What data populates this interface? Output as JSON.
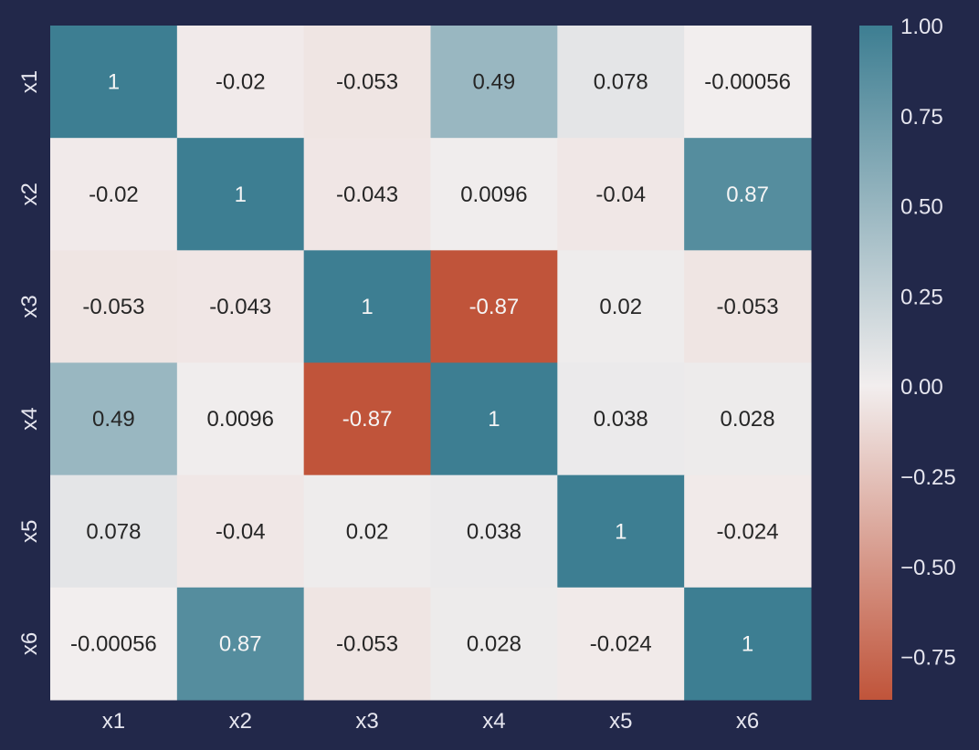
{
  "chart_data": {
    "type": "heatmap",
    "x_categories": [
      "x1",
      "x2",
      "x3",
      "x4",
      "x5",
      "x6"
    ],
    "y_categories": [
      "x1",
      "x2",
      "x3",
      "x4",
      "x5",
      "x6"
    ],
    "values": [
      [
        1,
        -0.02,
        -0.053,
        0.49,
        0.078,
        -0.00056
      ],
      [
        -0.02,
        1,
        -0.043,
        0.0096,
        -0.04,
        0.87
      ],
      [
        -0.053,
        -0.043,
        1,
        -0.87,
        0.02,
        -0.053
      ],
      [
        0.49,
        0.0096,
        -0.87,
        1,
        0.038,
        0.028
      ],
      [
        0.078,
        -0.04,
        0.02,
        0.038,
        1,
        -0.024
      ],
      [
        -0.00056,
        0.87,
        -0.053,
        0.028,
        -0.024,
        1
      ]
    ],
    "cell_labels": [
      [
        "1",
        "-0.02",
        "-0.053",
        "0.49",
        "0.078",
        "-0.00056"
      ],
      [
        "-0.02",
        "1",
        "-0.043",
        "0.0096",
        "-0.04",
        "0.87"
      ],
      [
        "-0.053",
        "-0.043",
        "1",
        "-0.87",
        "0.02",
        "-0.053"
      ],
      [
        "0.49",
        "0.0096",
        "-0.87",
        "1",
        "0.038",
        "0.028"
      ],
      [
        "0.078",
        "-0.04",
        "0.02",
        "0.038",
        "1",
        "-0.024"
      ],
      [
        "-0.00056",
        "0.87",
        "-0.053",
        "0.028",
        "-0.024",
        "1"
      ]
    ],
    "colorbar": {
      "range": [
        -0.87,
        1
      ],
      "ticks": [
        1.0,
        0.75,
        0.5,
        0.25,
        0.0,
        -0.25,
        -0.5,
        -0.75
      ],
      "tick_labels": [
        "1.00",
        "0.75",
        "0.50",
        "0.25",
        "0.00",
        "−0.25",
        "−0.50",
        "−0.75"
      ]
    },
    "colormap": {
      "low": "#c0543a",
      "mid": "#f2eeee",
      "high": "#3d7e92"
    },
    "title": "",
    "xlabel": "",
    "ylabel": ""
  },
  "colors": {
    "background": "#22284a",
    "tick_text": "#e6e6ef",
    "cell_text_light": "#f5f5f5",
    "cell_text_dark": "#262626"
  }
}
